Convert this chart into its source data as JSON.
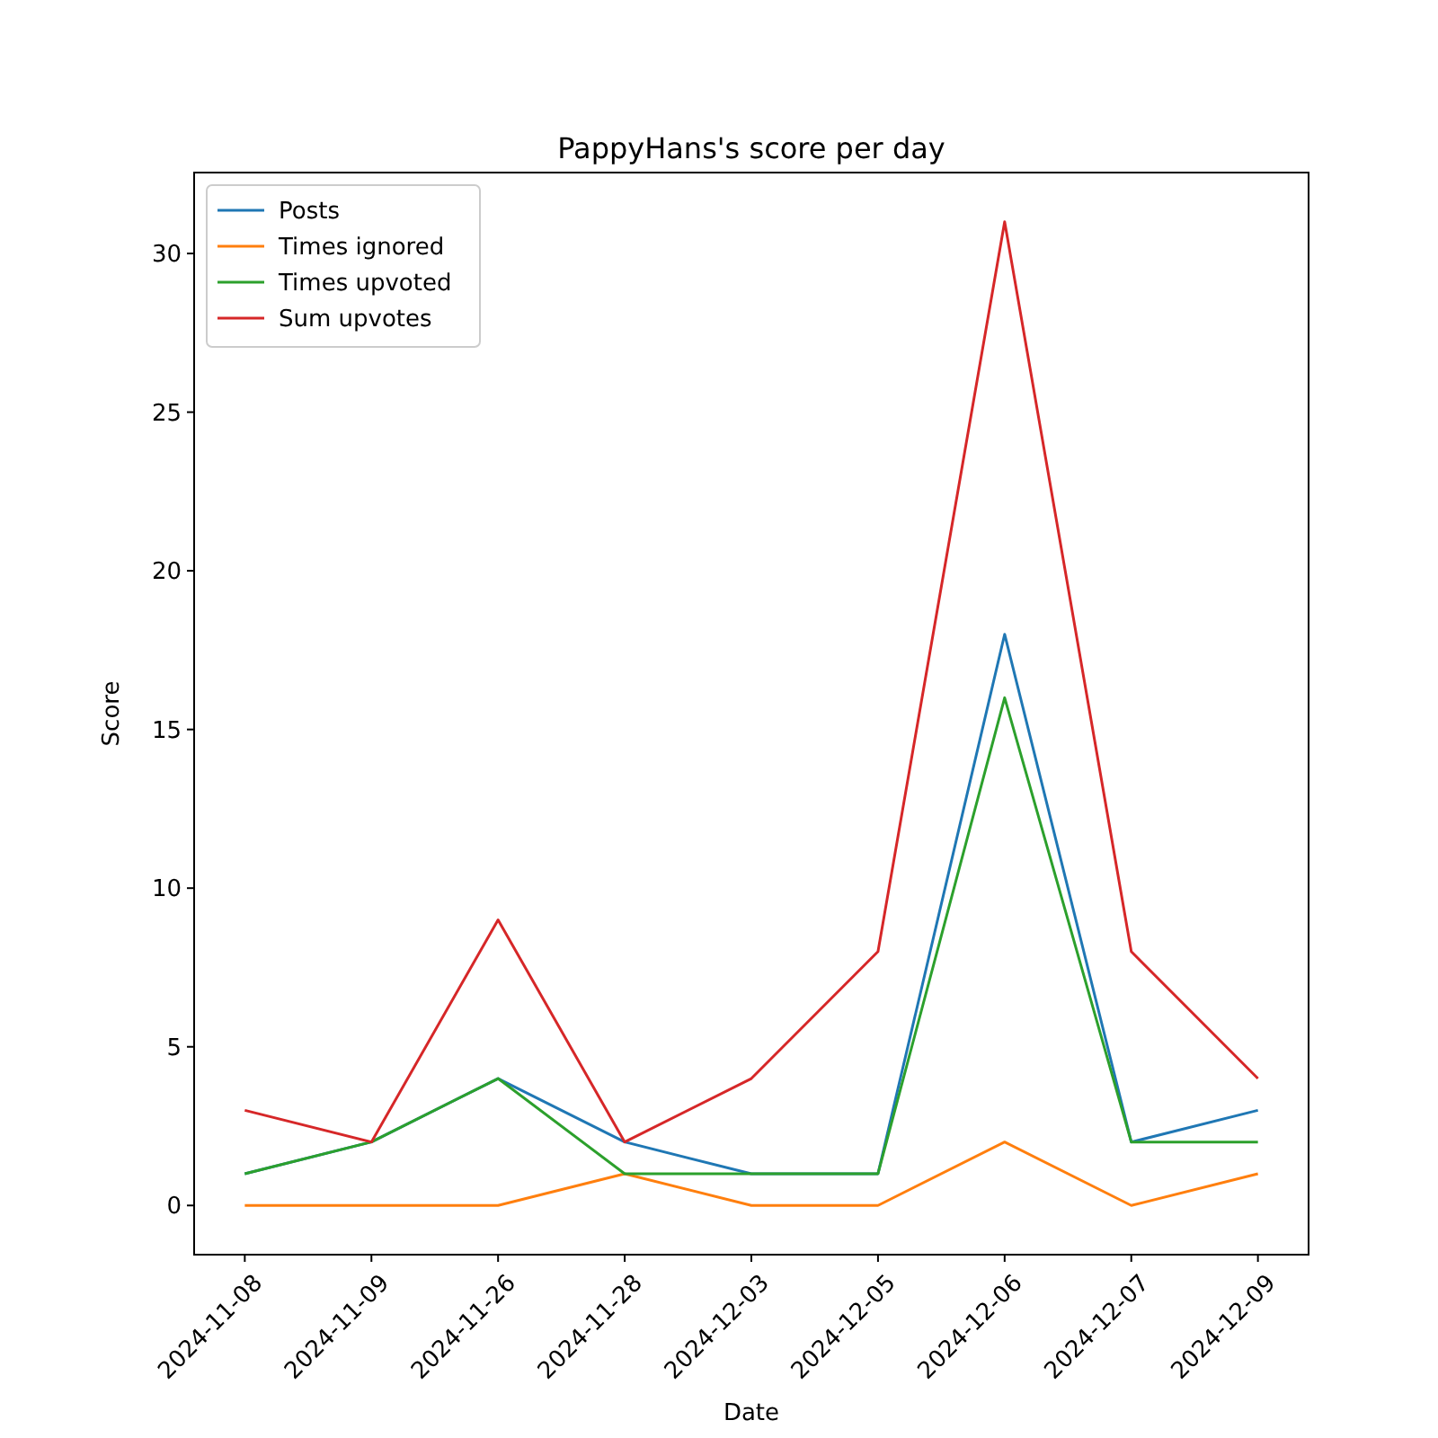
{
  "chart_data": {
    "type": "line",
    "title": "PappyHans's score per day",
    "xlabel": "Date",
    "ylabel": "Score",
    "categories": [
      "2024-11-08",
      "2024-11-09",
      "2024-11-26",
      "2024-11-28",
      "2024-12-03",
      "2024-12-05",
      "2024-12-06",
      "2024-12-07",
      "2024-12-09"
    ],
    "series": [
      {
        "name": "Posts",
        "color": "#1f77b4",
        "values": [
          1,
          2,
          4,
          2,
          1,
          1,
          18,
          2,
          3
        ]
      },
      {
        "name": "Times ignored",
        "color": "#ff7f0e",
        "values": [
          0,
          0,
          0,
          1,
          0,
          0,
          2,
          0,
          1
        ]
      },
      {
        "name": "Times upvoted",
        "color": "#2ca02c",
        "values": [
          1,
          2,
          4,
          1,
          1,
          1,
          16,
          2,
          2
        ]
      },
      {
        "name": "Sum upvotes",
        "color": "#d62728",
        "values": [
          3,
          2,
          9,
          2,
          4,
          8,
          31,
          8,
          4
        ]
      }
    ],
    "ylim": [
      -1.55,
      32.55
    ],
    "yticks": [
      0,
      5,
      10,
      15,
      20,
      25,
      30
    ],
    "legend": "top left",
    "grid": false
  }
}
